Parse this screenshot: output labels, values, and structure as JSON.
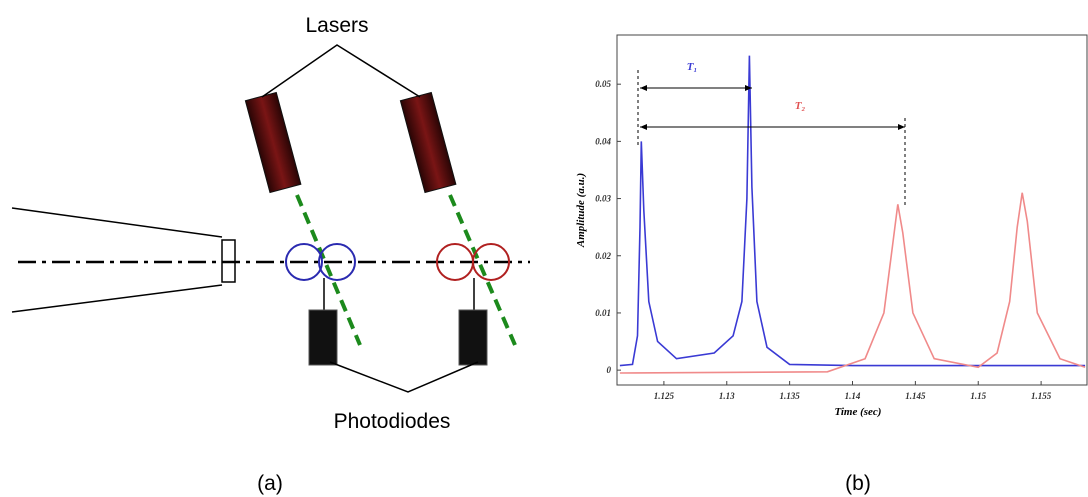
{
  "diagram": {
    "lasers_label": "Lasers",
    "photodiodes_label": "Photodiodes",
    "caption_a": "(a)",
    "caption_b": "(b)"
  },
  "chart_data": {
    "type": "line",
    "xlabel": "Time (sec)",
    "ylabel": "Amplitude (a.u.)",
    "annotations": [
      "T₁",
      "T₂"
    ],
    "xlim": [
      1.12127,
      1.15865
    ],
    "ylim": [
      -0.0026,
      0.0586
    ],
    "xticks": [
      1.125,
      1.13,
      1.135,
      1.14,
      1.145,
      1.15,
      1.155
    ],
    "yticks": [
      0,
      0.01,
      0.02,
      0.03,
      0.04,
      0.05
    ],
    "series": [
      {
        "color": "#3a3ad4",
        "x": [
          1.1215,
          1.1225,
          1.1229,
          1.1231,
          1.1232,
          1.1234,
          1.1238,
          1.1245,
          1.126,
          1.129,
          1.1305,
          1.1312,
          1.1316,
          1.1318,
          1.132,
          1.1324,
          1.1332,
          1.135,
          1.14,
          1.15,
          1.1585
        ],
        "values": [
          0.0008,
          0.001,
          0.006,
          0.025,
          0.04,
          0.028,
          0.012,
          0.005,
          0.002,
          0.003,
          0.006,
          0.012,
          0.03,
          0.055,
          0.032,
          0.012,
          0.004,
          0.001,
          0.0008,
          0.0008,
          0.0008
        ]
      },
      {
        "color": "#f08a8a",
        "x": [
          1.1215,
          1.138,
          1.141,
          1.1425,
          1.1432,
          1.1436,
          1.144,
          1.1448,
          1.1465,
          1.15,
          1.1515,
          1.1525,
          1.1531,
          1.1535,
          1.1539,
          1.1547,
          1.1565,
          1.1585
        ],
        "values": [
          -0.0005,
          -0.0003,
          0.002,
          0.01,
          0.022,
          0.029,
          0.024,
          0.01,
          0.002,
          0.0005,
          0.003,
          0.012,
          0.025,
          0.031,
          0.026,
          0.01,
          0.002,
          0.0005
        ]
      }
    ]
  }
}
